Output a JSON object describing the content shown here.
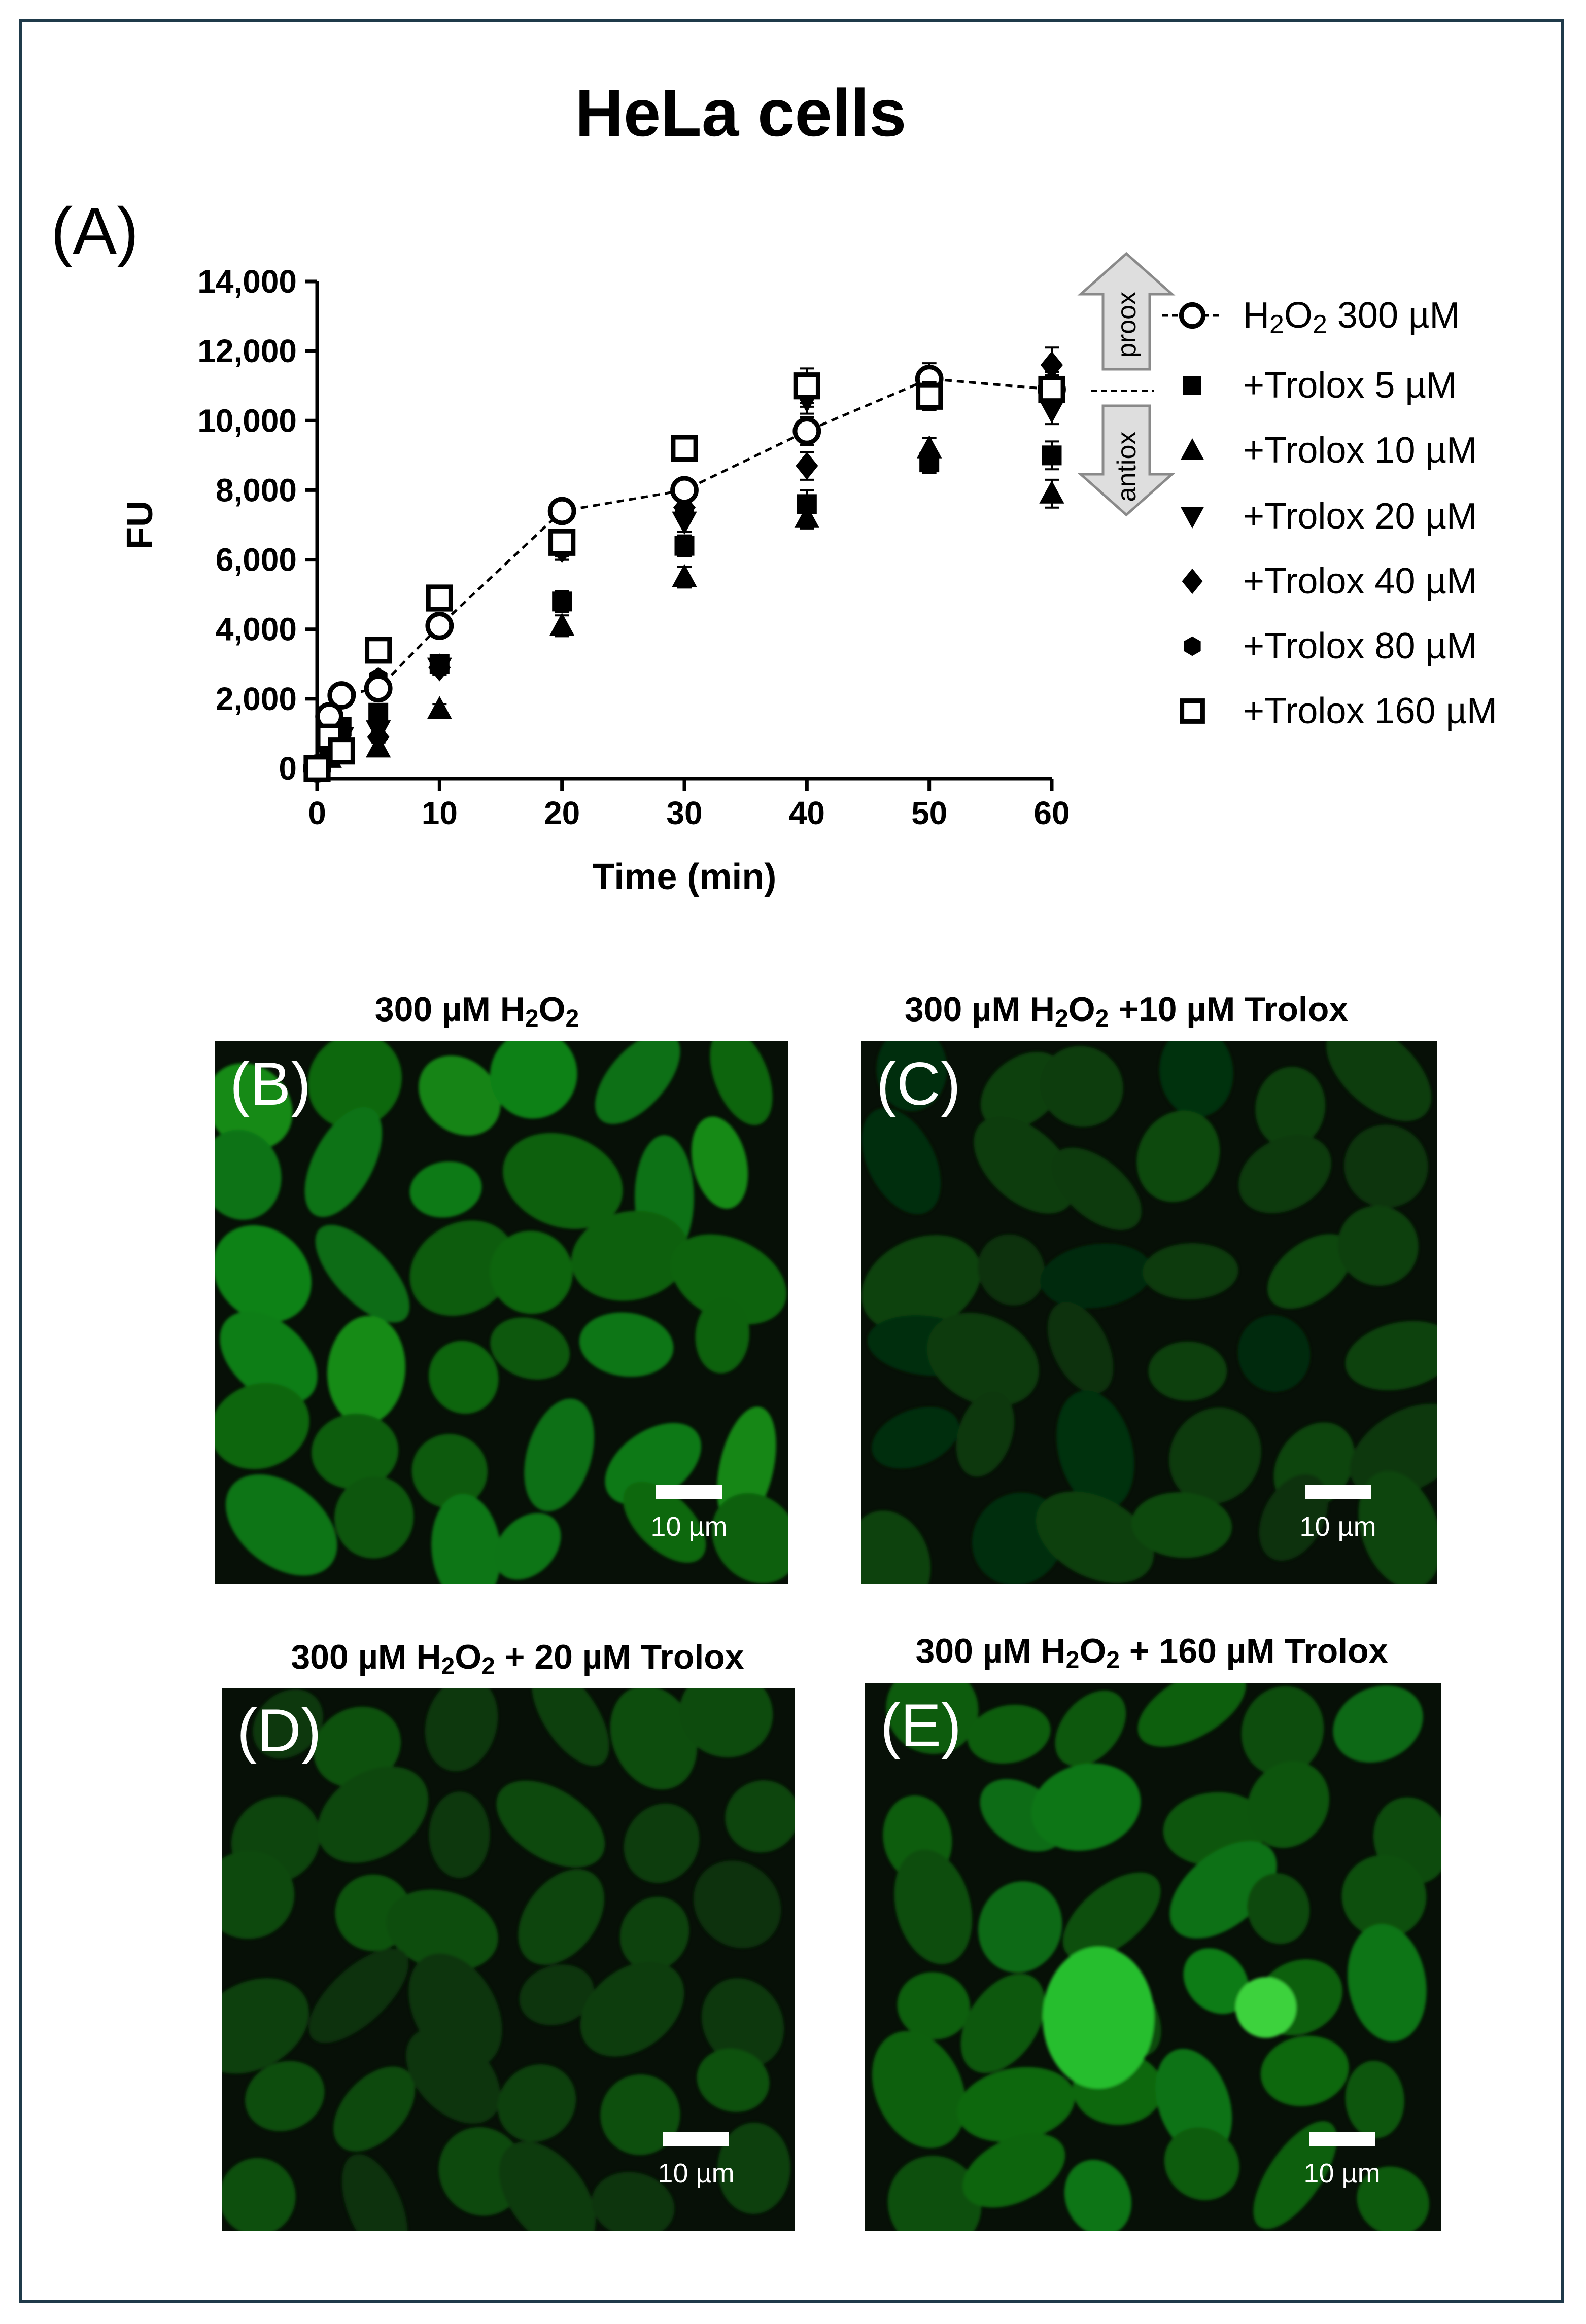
{
  "figure": {
    "title": "HeLa cells",
    "panel_a_label": "(A)"
  },
  "chart_data": {
    "type": "scatter",
    "title": "HeLa cells",
    "xlabel": "Time (min)",
    "ylabel": "FU",
    "xlim": [
      0,
      60
    ],
    "ylim": [
      0,
      14000
    ],
    "xticks": [
      0,
      10,
      20,
      30,
      40,
      50,
      60
    ],
    "yticks": [
      0,
      2000,
      4000,
      6000,
      8000,
      10000,
      12000,
      14000
    ],
    "ytick_labels": [
      "0",
      "2,000",
      "4,000",
      "6,000",
      "8,000",
      "10,000",
      "12,000",
      "14,000"
    ],
    "legend_position": "right",
    "x": [
      0,
      1,
      2,
      5,
      10,
      20,
      30,
      40,
      50,
      60
    ],
    "series": [
      {
        "name_main": "H",
        "name_sub1": "2",
        "name_mid": "O",
        "name_sub2": "2",
        "name_tail": " 300 µM",
        "marker": "open-circle",
        "connected": true,
        "values": [
          0,
          1500,
          2100,
          2300,
          4100,
          7400,
          8000,
          9700,
          11200,
          10900
        ],
        "errors": [
          0,
          150,
          150,
          200,
          250,
          300,
          300,
          400,
          450,
          400
        ]
      },
      {
        "name": "+Trolox 5 µM",
        "marker": "square",
        "values": [
          0,
          800,
          1200,
          1600,
          3000,
          4800,
          6400,
          7600,
          8800,
          9000
        ],
        "errors": [
          0,
          150,
          150,
          150,
          200,
          300,
          300,
          400,
          300,
          400
        ]
      },
      {
        "name": "+Trolox 10 µM",
        "marker": "triangle-up",
        "values": [
          0,
          300,
          500,
          600,
          1700,
          4100,
          5500,
          7200,
          9200,
          7900
        ],
        "errors": [
          0,
          100,
          100,
          150,
          150,
          300,
          300,
          300,
          300,
          400
        ]
      },
      {
        "name": "+Trolox 20 µM",
        "marker": "triangle-down",
        "values": [
          0,
          600,
          900,
          1100,
          2900,
          6300,
          7100,
          10600,
          10800,
          10300
        ],
        "errors": [
          0,
          150,
          150,
          150,
          200,
          300,
          300,
          400,
          400,
          400
        ]
      },
      {
        "name": "+Trolox 40 µM",
        "marker": "diamond",
        "values": [
          0,
          500,
          800,
          900,
          2900,
          6300,
          7500,
          8700,
          11000,
          11600
        ],
        "errors": [
          0,
          150,
          150,
          150,
          200,
          300,
          300,
          400,
          400,
          500
        ]
      },
      {
        "name": "+Trolox 80 µM",
        "marker": "hexagon",
        "values": [
          0,
          700,
          1000,
          2600,
          3000,
          6400,
          7400,
          10800,
          11000,
          11000
        ],
        "errors": [
          0,
          150,
          150,
          150,
          200,
          300,
          300,
          400,
          400,
          400
        ]
      },
      {
        "name": "+Trolox 160 µM",
        "marker": "open-square",
        "values": [
          0,
          900,
          500,
          3400,
          4900,
          6500,
          9200,
          11000,
          10700,
          10900
        ],
        "errors": [
          0,
          150,
          150,
          200,
          250,
          300,
          350,
          500,
          400,
          400
        ]
      }
    ],
    "annotations": {
      "up_arrow": "proox",
      "down_arrow": "antiox"
    }
  },
  "micrographs": [
    {
      "label": "(B)",
      "title_pre": "300 µM H",
      "title_mid": "O",
      "title_post": "",
      "scale_bar": "10 µm",
      "brightness": 0.85
    },
    {
      "label": "(C)",
      "title_pre": "300 µM H",
      "title_mid": "O",
      "title_post": " +10 µM Trolox",
      "scale_bar": "10 µm",
      "brightness": 0.45
    },
    {
      "label": "(D)",
      "title_pre": "300 µM H",
      "title_mid": "O",
      "title_post": " + 20 µM Trolox",
      "scale_bar": "10 µm",
      "brightness": 0.5
    },
    {
      "label": "(E)",
      "title_pre": "300 µM H",
      "title_mid": "O",
      "title_post": " + 160 µM Trolox",
      "scale_bar": "10 µm",
      "brightness": 0.75
    }
  ],
  "colors": {
    "frame": "#1f3a4a",
    "cell_green": "#2e8a1c",
    "micrograph_bg": "#071007",
    "arrow_fill": "#dedede",
    "arrow_stroke": "#8a8a8a"
  }
}
